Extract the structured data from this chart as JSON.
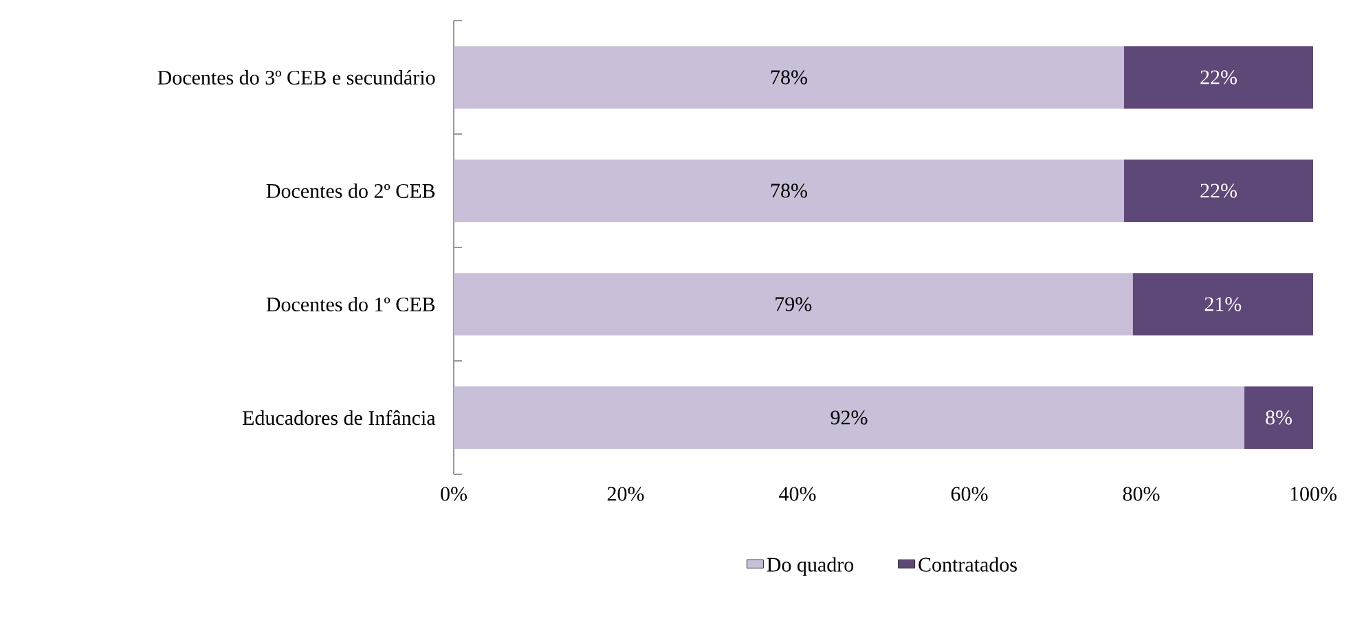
{
  "chart_data": {
    "type": "bar",
    "orientation": "horizontal",
    "stacked": true,
    "categories": [
      "Docentes do 3º CEB e secundário",
      "Docentes do 2º CEB",
      "Docentes do 1º CEB",
      "Educadores de Infância"
    ],
    "series": [
      {
        "name": "Do quadro",
        "color": "#c9bfd9",
        "values": [
          78,
          78,
          79,
          92
        ],
        "value_labels": [
          "78%",
          "78%",
          "79%",
          "92%"
        ]
      },
      {
        "name": "Contratados",
        "color": "#5e4878",
        "values": [
          22,
          22,
          21,
          8
        ],
        "value_labels": [
          "22%",
          "22%",
          "21%",
          "8%"
        ]
      }
    ],
    "xlim": [
      0,
      100
    ],
    "xticks": [
      {
        "value": 0,
        "label": "0%"
      },
      {
        "value": 20,
        "label": "20%"
      },
      {
        "value": 40,
        "label": "40%"
      },
      {
        "value": 60,
        "label": "60%"
      },
      {
        "value": 80,
        "label": "80%"
      },
      {
        "value": 100,
        "label": "100%"
      }
    ],
    "legend": "bottom"
  }
}
